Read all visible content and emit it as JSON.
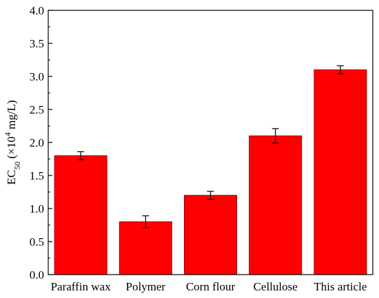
{
  "chart_data": {
    "type": "bar",
    "categories": [
      "Paraffin wax",
      "Polymer",
      "Corn flour",
      "Cellulose",
      "This article"
    ],
    "values": [
      1.8,
      0.8,
      1.2,
      2.1,
      3.1
    ],
    "errors": [
      0.06,
      0.09,
      0.06,
      0.11,
      0.06
    ],
    "ylim": [
      0,
      4.0
    ],
    "yticks": [
      "0.0",
      "0.5",
      "1.0",
      "1.5",
      "2.0",
      "2.5",
      "3.0",
      "3.5",
      "4.0"
    ],
    "ylabel": {
      "main": "EC",
      "sub": "50",
      "pre": " (×10",
      "sup": "4",
      "post": " mg/L)"
    },
    "xlabel": "",
    "title": "",
    "grid": false,
    "bar_color": "#ff0000",
    "bar_edge_color": "#990000"
  }
}
